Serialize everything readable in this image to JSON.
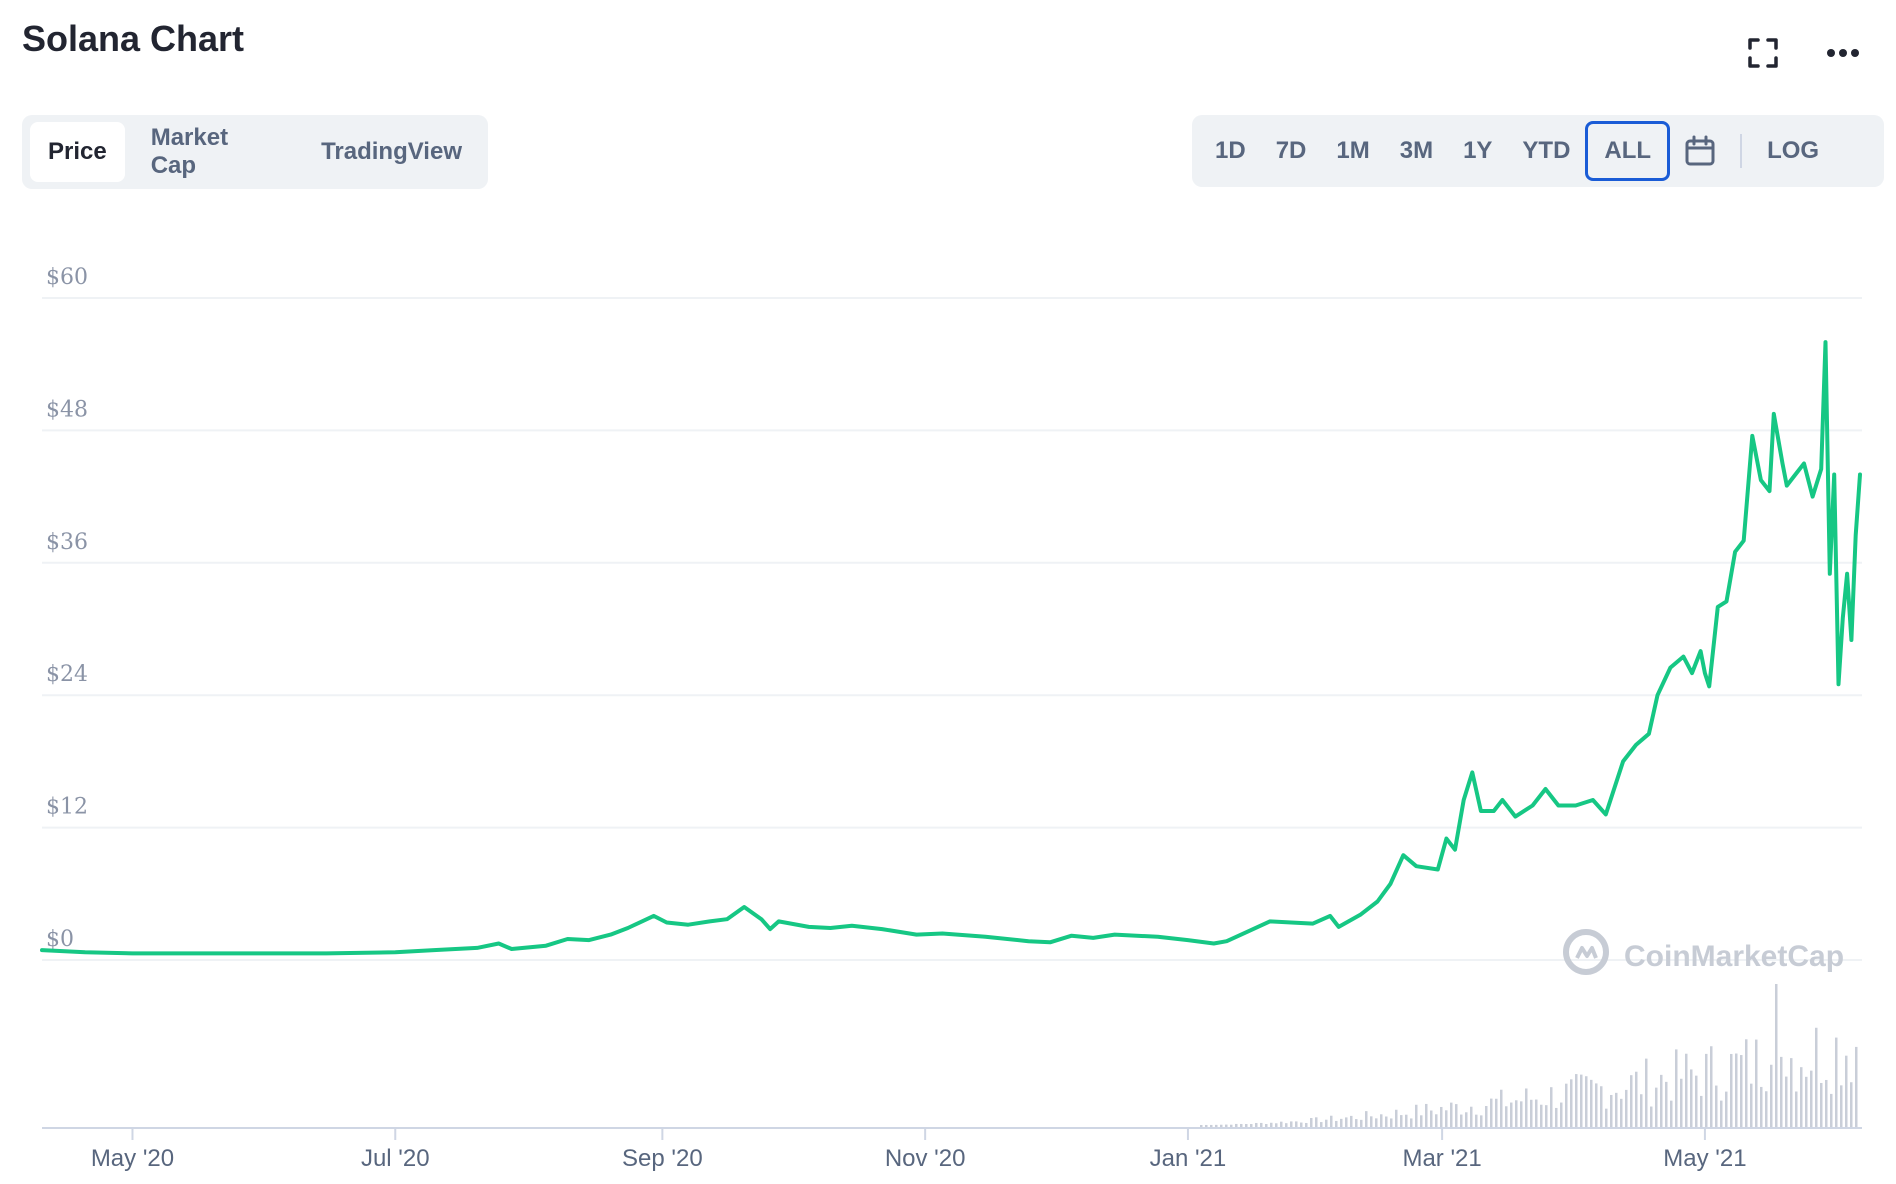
{
  "title": "Solana Chart",
  "tabs": [
    "Price",
    "Market Cap",
    "TradingView"
  ],
  "active_tab": "Price",
  "ranges": [
    "1D",
    "7D",
    "1M",
    "3M",
    "1Y",
    "YTD",
    "ALL"
  ],
  "active_range": "ALL",
  "log_label": "LOG",
  "icons": {
    "fullscreen": "fullscreen-icon",
    "more": "more-icon",
    "calendar": "calendar-icon"
  },
  "watermark": "CoinMarketCap",
  "colors": {
    "line": "#16c784",
    "accent": "#1a5cd6",
    "volume": "#c9ced8",
    "grid": "#eff2f5",
    "axis_text": "#8a93a6"
  },
  "chart_data": {
    "type": "line",
    "title": "Solana Chart",
    "xlabel": "",
    "ylabel": "",
    "ylim": [
      0,
      60
    ],
    "yticks": [
      {
        "value": 60,
        "label": "$60"
      },
      {
        "value": 48,
        "label": "$48"
      },
      {
        "value": 36,
        "label": "$36"
      },
      {
        "value": 24,
        "label": "$24"
      },
      {
        "value": 12,
        "label": "$12"
      },
      {
        "value": 0,
        "label": "$0"
      }
    ],
    "xlim": [
      "2020-04-10",
      "2021-06-06"
    ],
    "xticks": [
      {
        "date": "2020-05-01",
        "label": "May '20"
      },
      {
        "date": "2020-07-01",
        "label": "Jul '20"
      },
      {
        "date": "2020-09-01",
        "label": "Sep '20"
      },
      {
        "date": "2020-11-01",
        "label": "Nov '20"
      },
      {
        "date": "2021-01-01",
        "label": "Jan '21"
      },
      {
        "date": "2021-03-01",
        "label": "Mar '21"
      },
      {
        "date": "2021-05-01",
        "label": "May '21"
      }
    ],
    "grid": true,
    "series": [
      {
        "points": [
          [
            "2020-04-10",
            0.9
          ],
          [
            "2020-04-20",
            0.7
          ],
          [
            "2020-05-01",
            0.6
          ],
          [
            "2020-05-15",
            0.6
          ],
          [
            "2020-06-01",
            0.6
          ],
          [
            "2020-06-15",
            0.6
          ],
          [
            "2020-07-01",
            0.7
          ],
          [
            "2020-07-10",
            0.9
          ],
          [
            "2020-07-20",
            1.1
          ],
          [
            "2020-07-25",
            1.5
          ],
          [
            "2020-07-28",
            1.0
          ],
          [
            "2020-08-05",
            1.3
          ],
          [
            "2020-08-10",
            1.9
          ],
          [
            "2020-08-15",
            1.8
          ],
          [
            "2020-08-20",
            2.3
          ],
          [
            "2020-08-24",
            2.9
          ],
          [
            "2020-08-30",
            4.0
          ],
          [
            "2020-09-02",
            3.4
          ],
          [
            "2020-09-07",
            3.2
          ],
          [
            "2020-09-12",
            3.5
          ],
          [
            "2020-09-16",
            3.7
          ],
          [
            "2020-09-20",
            4.8
          ],
          [
            "2020-09-24",
            3.7
          ],
          [
            "2020-09-26",
            2.8
          ],
          [
            "2020-09-28",
            3.5
          ],
          [
            "2020-10-05",
            3.0
          ],
          [
            "2020-10-10",
            2.9
          ],
          [
            "2020-10-15",
            3.1
          ],
          [
            "2020-10-22",
            2.8
          ],
          [
            "2020-10-30",
            2.3
          ],
          [
            "2020-11-05",
            2.4
          ],
          [
            "2020-11-15",
            2.1
          ],
          [
            "2020-11-25",
            1.7
          ],
          [
            "2020-11-30",
            1.6
          ],
          [
            "2020-12-05",
            2.2
          ],
          [
            "2020-12-10",
            2.0
          ],
          [
            "2020-12-15",
            2.3
          ],
          [
            "2020-12-25",
            2.1
          ],
          [
            "2021-01-01",
            1.8
          ],
          [
            "2021-01-07",
            1.5
          ],
          [
            "2021-01-10",
            1.7
          ],
          [
            "2021-01-15",
            2.6
          ],
          [
            "2021-01-20",
            3.5
          ],
          [
            "2021-01-25",
            3.4
          ],
          [
            "2021-01-30",
            3.3
          ],
          [
            "2021-02-03",
            4.0
          ],
          [
            "2021-02-05",
            3.0
          ],
          [
            "2021-02-10",
            4.1
          ],
          [
            "2021-02-14",
            5.3
          ],
          [
            "2021-02-17",
            6.9
          ],
          [
            "2021-02-20",
            9.5
          ],
          [
            "2021-02-23",
            8.5
          ],
          [
            "2021-02-28",
            8.2
          ],
          [
            "2021-03-02",
            11.0
          ],
          [
            "2021-03-04",
            10.0
          ],
          [
            "2021-03-06",
            14.5
          ],
          [
            "2021-03-08",
            17.0
          ],
          [
            "2021-03-10",
            13.5
          ],
          [
            "2021-03-13",
            13.5
          ],
          [
            "2021-03-15",
            14.5
          ],
          [
            "2021-03-18",
            13.0
          ],
          [
            "2021-03-22",
            14.0
          ],
          [
            "2021-03-25",
            15.5
          ],
          [
            "2021-03-28",
            14.0
          ],
          [
            "2021-04-01",
            14.0
          ],
          [
            "2021-04-05",
            14.5
          ],
          [
            "2021-04-08",
            13.2
          ],
          [
            "2021-04-12",
            18.0
          ],
          [
            "2021-04-15",
            19.5
          ],
          [
            "2021-04-18",
            20.5
          ],
          [
            "2021-04-20",
            24.0
          ],
          [
            "2021-04-23",
            26.5
          ],
          [
            "2021-04-26",
            27.5
          ],
          [
            "2021-04-28",
            26.0
          ],
          [
            "2021-04-30",
            28.0
          ],
          [
            "2021-05-01",
            26.0
          ],
          [
            "2021-05-02",
            24.8
          ],
          [
            "2021-05-04",
            32.0
          ],
          [
            "2021-05-06",
            32.5
          ],
          [
            "2021-05-08",
            37.0
          ],
          [
            "2021-05-10",
            38.0
          ],
          [
            "2021-05-12",
            47.5
          ],
          [
            "2021-05-14",
            43.5
          ],
          [
            "2021-05-16",
            42.5
          ],
          [
            "2021-05-17",
            49.5
          ],
          [
            "2021-05-19",
            45.0
          ],
          [
            "2021-05-20",
            43.0
          ],
          [
            "2021-05-22",
            44.0
          ],
          [
            "2021-05-24",
            45.0
          ],
          [
            "2021-05-26",
            42.0
          ],
          [
            "2021-05-28",
            44.5
          ],
          [
            "2021-05-29",
            56.0
          ],
          [
            "2021-05-30",
            35.0
          ],
          [
            "2021-05-31",
            44.0
          ],
          [
            "2021-06-01",
            25.0
          ],
          [
            "2021-06-02",
            31.0
          ],
          [
            "2021-06-03",
            35.0
          ],
          [
            "2021-06-04",
            29.0
          ],
          [
            "2021-06-05",
            38.5
          ],
          [
            "2021-06-06",
            44.0
          ]
        ]
      }
    ]
  }
}
